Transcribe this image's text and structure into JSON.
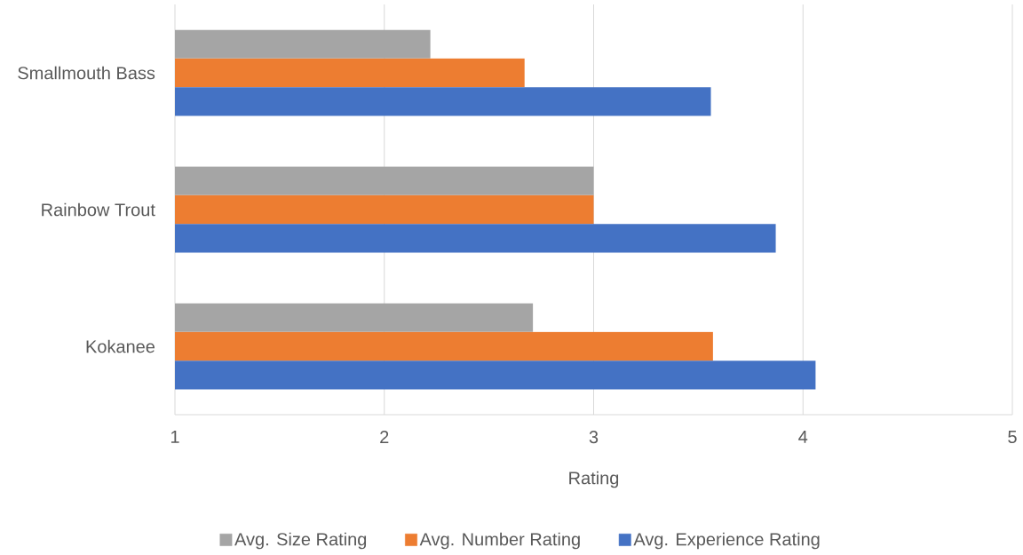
{
  "chart_data": {
    "type": "bar",
    "orientation": "horizontal",
    "xlabel": "Rating",
    "categories": [
      "Smallmouth Bass",
      "Rainbow Trout",
      "Kokanee"
    ],
    "series": [
      {
        "name": "Avg. Size Rating",
        "color": "#a5a5a5",
        "values": [
          2.22,
          3.0,
          2.71
        ]
      },
      {
        "name": "Avg. Number Rating",
        "color": "#ed7d31",
        "values": [
          2.67,
          3.0,
          3.57
        ]
      },
      {
        "name": "Avg. Experience Rating",
        "color": "#4472c4",
        "values": [
          3.56,
          3.87,
          4.06
        ]
      }
    ],
    "xlim": [
      1,
      5
    ],
    "xticks": [
      1,
      2,
      3,
      4,
      5
    ],
    "grid": "x",
    "legend": "bottom"
  }
}
